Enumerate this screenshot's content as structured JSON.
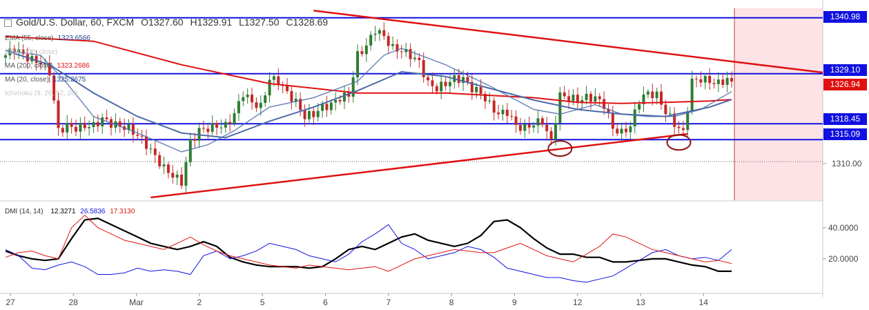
{
  "header": {
    "symbol": "Gold/U.S. Dollar, 60, FXCM",
    "open": "O1327.60",
    "high": "H1329.91",
    "low": "L1327.50",
    "close": "C1328.69"
  },
  "indicators": [
    {
      "label": "EMA (55, close)",
      "value": "1323.6566",
      "color": "#1f3f8f"
    },
    {
      "label": "EMA (200, close)",
      "value": "",
      "color": "#c8c8c8"
    },
    {
      "label": "MA (200, close)",
      "value": "1323.2686",
      "color": "#e01010"
    },
    {
      "label": "MA (20, close)",
      "value": "1325.2675",
      "color": "#1f3f8f"
    },
    {
      "label": "Ichimoku (9, 26, 52, 26)",
      "value": "",
      "color": "#c8c8c8"
    }
  ],
  "dmi": {
    "label": "DMI (14, 14)",
    "adx": "12.3271",
    "plus_di": "26.5836",
    "minus_di": "17.3130"
  },
  "price_tags": [
    {
      "value": "1340.98",
      "color": "#1010e0"
    },
    {
      "value": "1329.10",
      "color": "#1010e0"
    },
    {
      "value": "1326.94",
      "color": "#e01010"
    },
    {
      "value": "1318.45",
      "color": "#1010e0"
    },
    {
      "value": "1315.09",
      "color": "#1010e0"
    }
  ],
  "colors": {
    "support_resistance": "#1010e0",
    "trendline": "#e01010",
    "ma200": "#e01010",
    "ema55": "#4a6aa8",
    "bull_candle": "#2e7d32",
    "bear_candle": "#c62828",
    "adx": "#000000",
    "plus_di": "#1010e0",
    "minus_di": "#e01010",
    "future_zone": "#fde2e6"
  },
  "chart_data": {
    "type": "candlestick",
    "price_axis": {
      "ticks": [
        1310.0,
        1320.0
      ],
      "ylim": [
        1302.5,
        1343.0
      ]
    },
    "dmi_axis": {
      "ticks": [
        20.0,
        40.0
      ],
      "ylim": [
        0,
        55
      ]
    },
    "x_labels": [
      "27",
      "28",
      "Mar",
      "2",
      "5",
      "6",
      "7",
      "8",
      "9",
      "12",
      "13",
      "14"
    ],
    "horizontal_levels": [
      1340.98,
      1329.1,
      1318.45,
      1315.09
    ],
    "last_price": 1326.94,
    "resistance_trendline": {
      "from": {
        "bar": 70,
        "price": 1342.5
      },
      "to": {
        "bar": 180,
        "price": 1330.0
      }
    },
    "support_trendline": {
      "from": {
        "bar": 33,
        "price": 1302.8
      },
      "to": {
        "bar": 155,
        "price": 1316.3
      }
    },
    "circled_lows": [
      {
        "bar": 126,
        "price": 1313.2
      },
      {
        "bar": 153,
        "price": 1314.5
      }
    ],
    "close_path": [
      [
        0,
        1333.0
      ],
      [
        2,
        1334.5
      ],
      [
        4,
        1333.0
      ],
      [
        6,
        1332.0
      ],
      [
        8,
        1331.5
      ],
      [
        10,
        1329.5
      ],
      [
        12,
        1317.0
      ],
      [
        14,
        1318.0
      ],
      [
        16,
        1317.5
      ],
      [
        18,
        1318.0
      ],
      [
        20,
        1318.0
      ],
      [
        22,
        1319.5
      ],
      [
        24,
        1318.5
      ],
      [
        26,
        1318.0
      ],
      [
        28,
        1317.5
      ],
      [
        30,
        1316.0
      ],
      [
        32,
        1314.0
      ],
      [
        34,
        1311.5
      ],
      [
        36,
        1309.0
      ],
      [
        38,
        1307.5
      ],
      [
        40,
        1306.0
      ],
      [
        42,
        1314.5
      ],
      [
        44,
        1317.0
      ],
      [
        46,
        1317.5
      ],
      [
        48,
        1318.0
      ],
      [
        50,
        1318.0
      ],
      [
        52,
        1320.5
      ],
      [
        54,
        1325.0
      ],
      [
        56,
        1323.0
      ],
      [
        58,
        1322.0
      ],
      [
        60,
        1328.0
      ],
      [
        62,
        1327.5
      ],
      [
        64,
        1325.0
      ],
      [
        66,
        1323.0
      ],
      [
        68,
        1320.0
      ],
      [
        70,
        1320.5
      ],
      [
        72,
        1322.0
      ],
      [
        74,
        1322.5
      ],
      [
        76,
        1324.0
      ],
      [
        78,
        1324.5
      ],
      [
        80,
        1333.0
      ],
      [
        82,
        1335.0
      ],
      [
        84,
        1338.5
      ],
      [
        86,
        1337.0
      ],
      [
        88,
        1334.5
      ],
      [
        90,
        1334.0
      ],
      [
        92,
        1333.0
      ],
      [
        94,
        1331.5
      ],
      [
        96,
        1327.0
      ],
      [
        98,
        1326.0
      ],
      [
        100,
        1327.0
      ],
      [
        102,
        1328.0
      ],
      [
        104,
        1328.0
      ],
      [
        106,
        1326.0
      ],
      [
        108,
        1325.0
      ],
      [
        110,
        1322.5
      ],
      [
        112,
        1320.5
      ],
      [
        114,
        1321.0
      ],
      [
        116,
        1318.0
      ],
      [
        118,
        1317.5
      ],
      [
        120,
        1318.5
      ],
      [
        122,
        1319.0
      ],
      [
        124,
        1314.5
      ],
      [
        126,
        1324.5
      ],
      [
        128,
        1324.0
      ],
      [
        130,
        1323.5
      ],
      [
        132,
        1324.0
      ],
      [
        134,
        1324.0
      ],
      [
        136,
        1322.5
      ],
      [
        138,
        1317.5
      ],
      [
        140,
        1316.5
      ],
      [
        142,
        1318.0
      ],
      [
        144,
        1323.5
      ],
      [
        146,
        1325.0
      ],
      [
        148,
        1324.5
      ],
      [
        150,
        1321.0
      ],
      [
        152,
        1318.5
      ],
      [
        154,
        1316.5
      ],
      [
        156,
        1327.5
      ],
      [
        158,
        1328.0
      ],
      [
        160,
        1327.5
      ],
      [
        162,
        1327.0
      ],
      [
        164,
        1328.0
      ],
      [
        165,
        1326.9
      ]
    ],
    "ma200_path": [
      [
        0,
        1337.0
      ],
      [
        20,
        1336.0
      ],
      [
        40,
        1331.0
      ],
      [
        60,
        1327.0
      ],
      [
        80,
        1325.0
      ],
      [
        100,
        1325.0
      ],
      [
        120,
        1324.0
      ],
      [
        130,
        1323.0
      ],
      [
        140,
        1322.8
      ],
      [
        150,
        1323.0
      ],
      [
        160,
        1323.3
      ],
      [
        165,
        1323.6
      ]
    ],
    "ema55_path": [
      [
        0,
        1334.0
      ],
      [
        10,
        1331.0
      ],
      [
        20,
        1325.0
      ],
      [
        30,
        1320.0
      ],
      [
        40,
        1316.5
      ],
      [
        50,
        1315.5
      ],
      [
        60,
        1319.0
      ],
      [
        70,
        1322.0
      ],
      [
        80,
        1325.5
      ],
      [
        90,
        1329.5
      ],
      [
        100,
        1328.5
      ],
      [
        110,
        1326.0
      ],
      [
        120,
        1323.5
      ],
      [
        130,
        1321.5
      ],
      [
        140,
        1320.5
      ],
      [
        150,
        1320.0
      ],
      [
        160,
        1322.0
      ],
      [
        165,
        1323.6
      ]
    ],
    "ma20_path": [
      [
        0,
        1334.0
      ],
      [
        8,
        1333.0
      ],
      [
        14,
        1327.0
      ],
      [
        20,
        1320.0
      ],
      [
        30,
        1316.5
      ],
      [
        40,
        1312.5
      ],
      [
        46,
        1314.0
      ],
      [
        52,
        1317.0
      ],
      [
        60,
        1322.0
      ],
      [
        70,
        1324.0
      ],
      [
        80,
        1327.5
      ],
      [
        86,
        1333.0
      ],
      [
        90,
        1334.5
      ],
      [
        100,
        1331.0
      ],
      [
        110,
        1326.5
      ],
      [
        120,
        1321.5
      ],
      [
        126,
        1320.5
      ],
      [
        134,
        1322.5
      ],
      [
        140,
        1320.5
      ],
      [
        146,
        1320.0
      ],
      [
        152,
        1320.0
      ],
      [
        158,
        1321.5
      ],
      [
        165,
        1325.3
      ]
    ],
    "series": [
      {
        "name": "DMI ADX",
        "values": [
          25,
          22,
          20,
          19,
          20,
          33,
          45,
          46,
          42,
          38,
          34,
          30,
          28,
          26,
          28,
          31,
          28,
          21,
          18,
          16,
          15,
          15,
          15,
          14,
          15,
          20,
          26,
          28,
          26,
          30,
          34,
          36,
          32,
          30,
          28,
          30,
          35,
          44,
          45,
          40,
          33,
          27,
          23,
          23,
          21,
          21,
          18,
          18,
          19,
          20,
          20,
          18,
          16,
          15,
          12,
          12
        ]
      },
      {
        "name": "DMI +DI",
        "values": [
          26,
          22,
          14,
          13,
          16,
          18,
          15,
          10,
          10,
          11,
          14,
          12,
          13,
          12,
          10,
          22,
          25,
          20,
          22,
          25,
          30,
          28,
          26,
          22,
          20,
          18,
          23,
          31,
          36,
          42,
          30,
          26,
          20,
          22,
          24,
          28,
          26,
          21,
          14,
          12,
          10,
          8,
          8,
          6,
          5,
          7,
          9,
          14,
          19,
          24,
          26,
          22,
          20,
          21,
          19,
          26
        ]
      },
      {
        "name": "DMI -DI",
        "values": [
          21,
          24,
          25,
          22,
          20,
          40,
          48,
          40,
          36,
          32,
          30,
          28,
          26,
          30,
          34,
          29,
          25,
          22,
          20,
          18,
          16,
          15,
          14,
          16,
          15,
          14,
          13,
          14,
          15,
          12,
          16,
          20,
          22,
          24,
          26,
          25,
          24,
          24,
          27,
          30,
          26,
          22,
          20,
          18,
          23,
          28,
          36,
          34,
          30,
          26,
          24,
          22,
          20,
          18,
          19,
          17
        ]
      }
    ]
  }
}
